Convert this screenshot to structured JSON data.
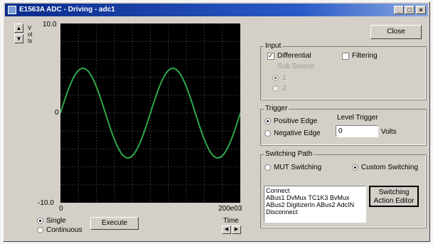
{
  "window": {
    "title": "E1563A ADC - Driving - adc1"
  },
  "titlebar_buttons": [
    "_",
    "□",
    "×"
  ],
  "plot": {
    "y_top": "10.0",
    "y_zero": "0",
    "y_bottom": "-10.0",
    "x_left": "0",
    "x_right": "200e03",
    "y_axis_label": "Volts",
    "x_axis_label": "Time",
    "colors": {
      "background": "#000000",
      "trace": "#2fa84a",
      "grid": "#5a5a5a"
    }
  },
  "chart_data": {
    "type": "line",
    "x_range": [
      0,
      200000
    ],
    "y_range": [
      -10,
      10
    ],
    "series": [
      {
        "points": [
          [
            0,
            0
          ],
          [
            25000,
            5
          ],
          [
            50000,
            0
          ],
          [
            75000,
            -5
          ],
          [
            100000,
            0
          ],
          [
            125000,
            5
          ],
          [
            150000,
            0
          ],
          [
            175000,
            -5
          ],
          [
            200000,
            0
          ]
        ]
      }
    ]
  },
  "mode": {
    "single_label": "Single",
    "continuous_label": "Continuous",
    "selected": "single"
  },
  "execute_label": "Execute",
  "close_label": "Close",
  "input": {
    "title": "Input",
    "differential_label": "Differential",
    "filtering_label": "Filtering",
    "sub_label": "Sub Source",
    "opt1_label": "1",
    "opt2_label": "2"
  },
  "trigger": {
    "title": "Trigger",
    "positive_label": "Positive Edge",
    "negative_label": "Negative Edge",
    "level_label": "Level Trigger",
    "level_value": "0",
    "units": "Volts"
  },
  "switching": {
    "title": "Switching Path",
    "mut_label": "MUT Switching",
    "custom_label": "Custom Switching",
    "editor_label_1": "Switching",
    "editor_label_2": "Action Editor",
    "list": [
      "Connect",
      "ABus1 DvMux TC1K3 BvMux",
      "ABus2 DigitizerIn ABus2 AdcIN",
      "Disconnect"
    ]
  }
}
